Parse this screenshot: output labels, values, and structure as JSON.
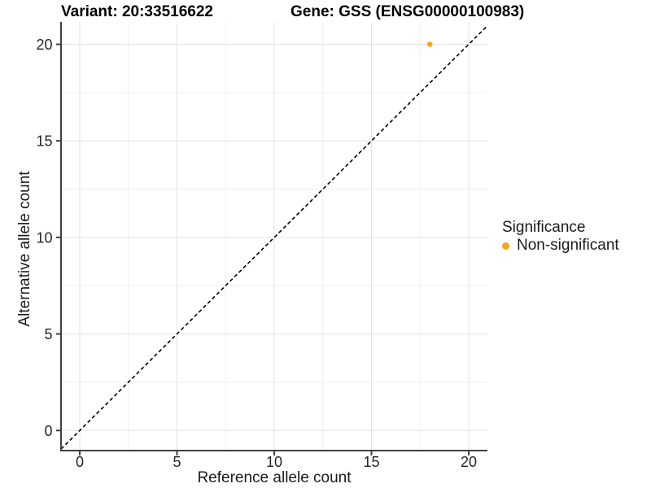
{
  "chart_data": {
    "type": "scatter",
    "title_left": "Variant: 20:33516622",
    "title_right": "Gene: GSS (ENSG00000100983)",
    "xlabel": "Reference allele count",
    "ylabel": "Alternative allele count",
    "xticks": [
      0,
      5,
      10,
      15,
      20
    ],
    "yticks": [
      0,
      5,
      10,
      15,
      20
    ],
    "x_minor_ticks": [
      2.5,
      7.5,
      12.5,
      17.5
    ],
    "y_minor_ticks": [
      2.5,
      7.5,
      12.5,
      17.5
    ],
    "xlim": [
      -1,
      21
    ],
    "ylim": [
      -1,
      21.1
    ],
    "grid": "major+minor",
    "identity_line": {
      "slope": 1,
      "intercept": 0,
      "style": "dashed",
      "color": "#000000"
    },
    "series": [
      {
        "name": "Non-significant",
        "color": "#FBA414",
        "points": [
          {
            "x": 18,
            "y": 20
          }
        ]
      }
    ],
    "legend": {
      "title": "Significance",
      "position": "right",
      "items": [
        {
          "label": "Non-significant",
          "color": "#FBA414"
        }
      ]
    },
    "colors": {
      "background": "#FFFFFF",
      "grid_major": "#E3E3E3",
      "grid_minor": "#F0F0F0",
      "axis": "#404040",
      "tick_text": "#262626",
      "title_text": "#000000"
    }
  }
}
